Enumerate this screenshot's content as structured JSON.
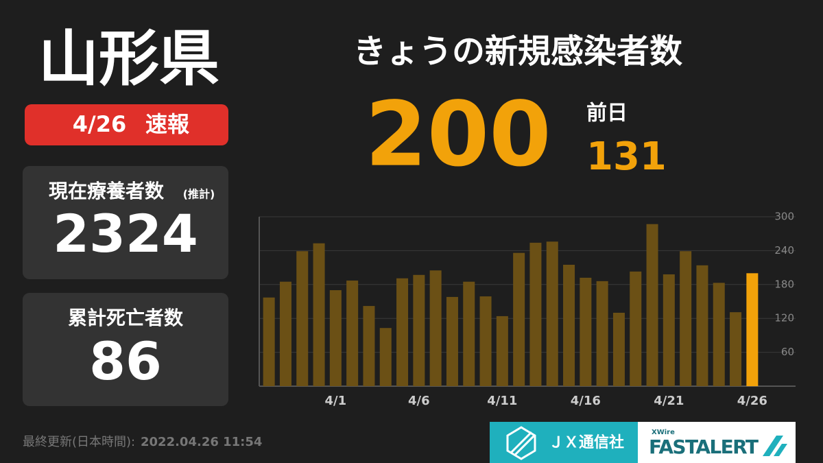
{
  "header": {
    "prefecture": "山形県",
    "date": "4/26",
    "badge": "速報"
  },
  "panels": [
    {
      "label": "現在療養者数",
      "note": "(推計)",
      "value": 2324
    },
    {
      "label": "累計死亡者数",
      "value": 86
    }
  ],
  "headline": {
    "title": "きょうの新規感染者数",
    "value": 200,
    "previous_label": "前日",
    "previous_value": 131
  },
  "chart_data": {
    "type": "bar",
    "categories": [
      null,
      null,
      null,
      null,
      "4/1",
      null,
      null,
      null,
      null,
      "4/6",
      null,
      null,
      null,
      null,
      "4/11",
      null,
      null,
      null,
      null,
      "4/16",
      null,
      null,
      null,
      null,
      "4/21",
      null,
      null,
      null,
      null,
      "4/26"
    ],
    "values": [
      157,
      185,
      239,
      253,
      170,
      187,
      142,
      103,
      191,
      197,
      205,
      158,
      185,
      159,
      124,
      236,
      254,
      256,
      215,
      192,
      186,
      130,
      203,
      287,
      198,
      239,
      214,
      183,
      131,
      200
    ],
    "color": "#6b5015",
    "latest_color": "#f2a20a",
    "ylim": [
      0,
      300
    ],
    "yticks": [
      60,
      120,
      180,
      240,
      300
    ],
    "grid": true
  },
  "footer": {
    "updated_label": "最終更新(日本時間):",
    "updated": "2022.04.26 11:54",
    "brand1": "ＪＸ通信社",
    "brand2_small": "XWire",
    "brand2": "FASTALERT"
  }
}
